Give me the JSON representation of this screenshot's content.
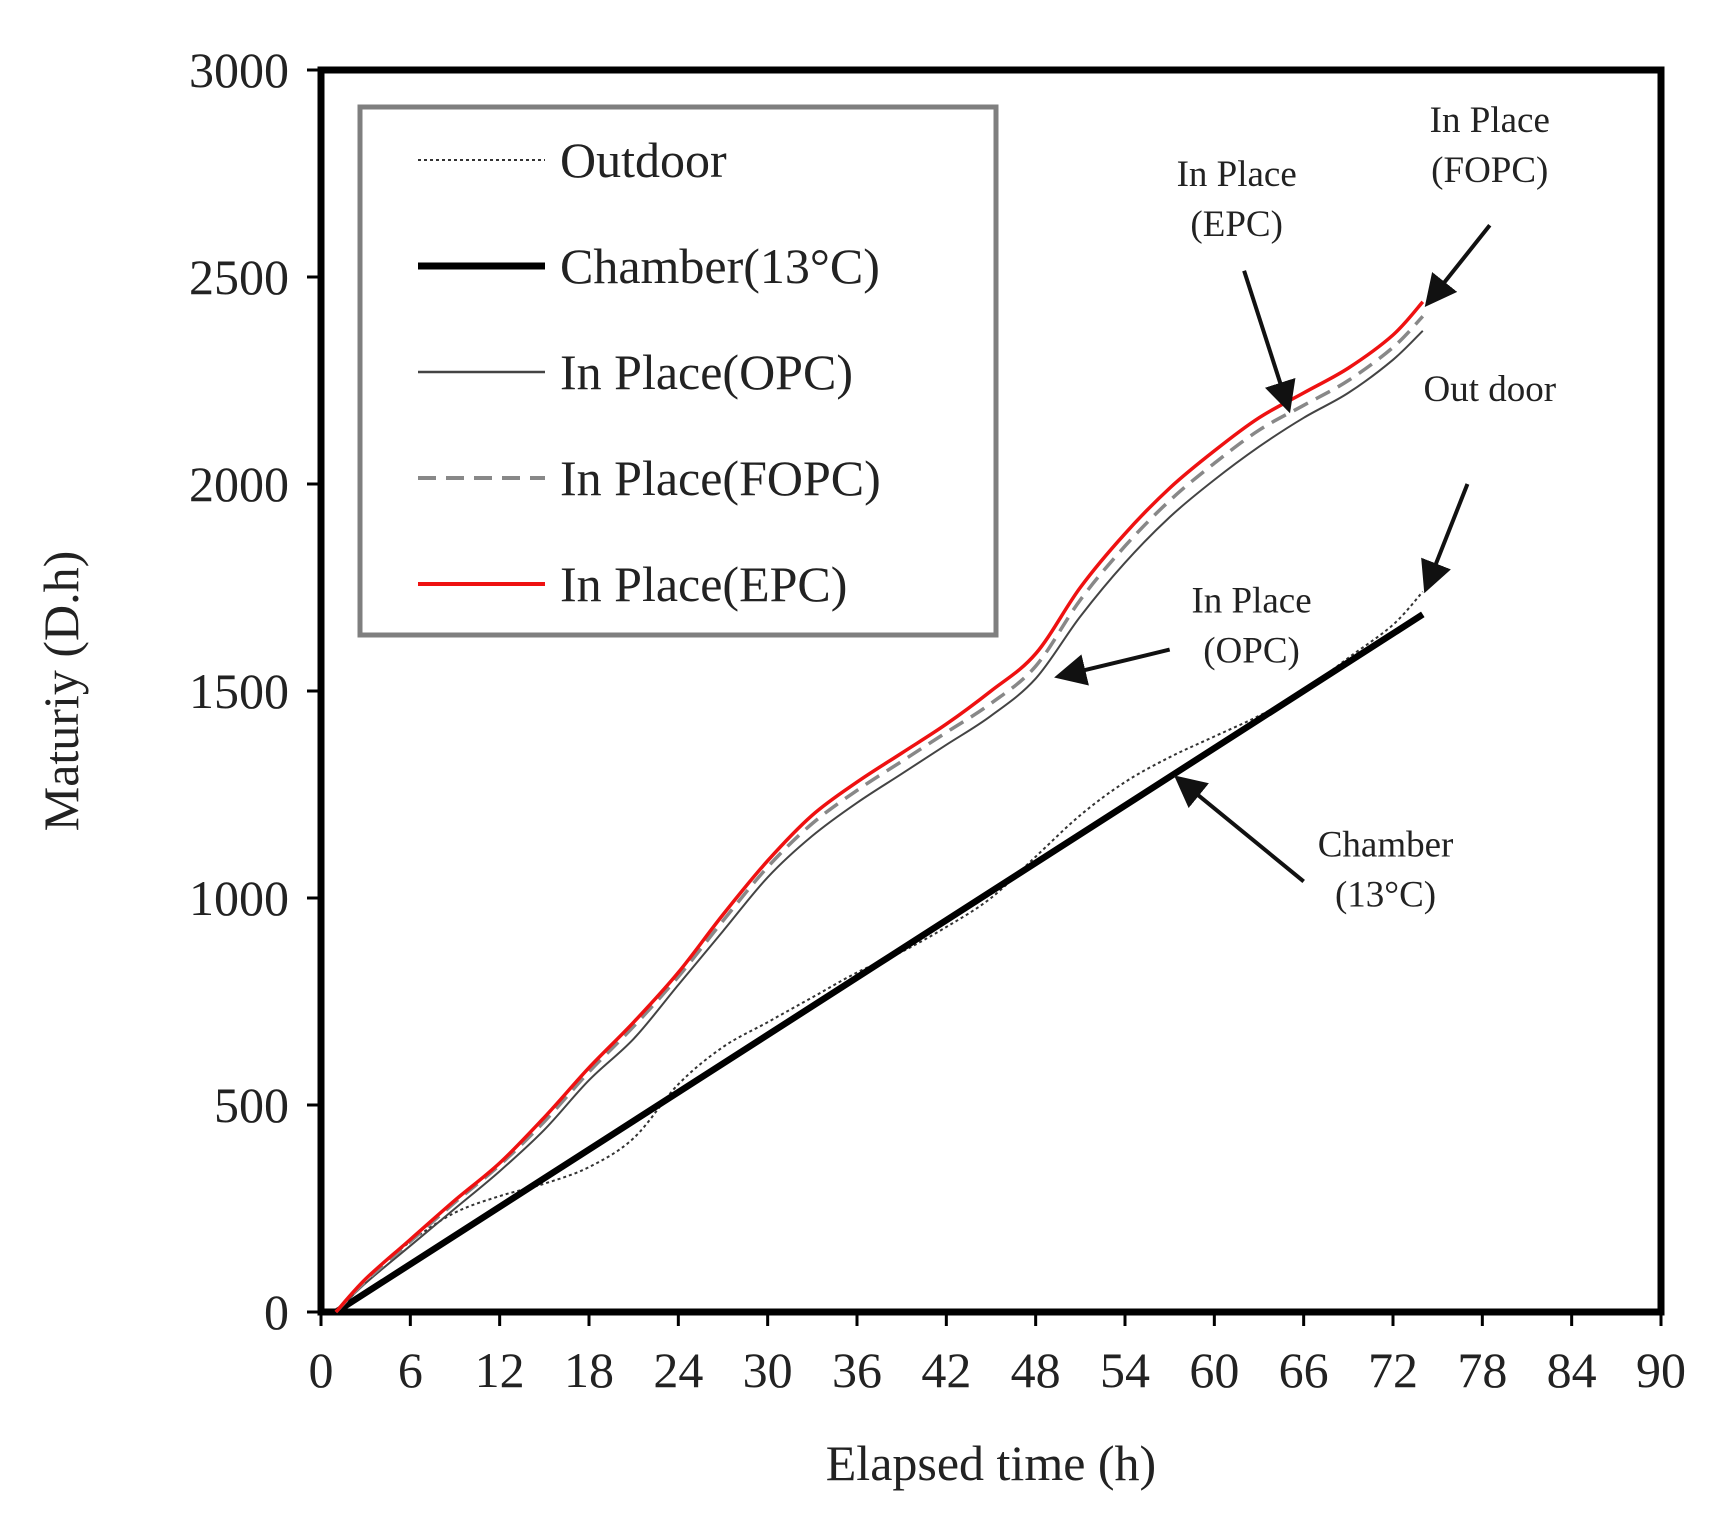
{
  "chart_data": {
    "type": "line",
    "title": "",
    "xlabel": "Elapsed time (h)",
    "ylabel": "Maturiy (D.h)",
    "xlim": [
      0,
      90
    ],
    "ylim": [
      0,
      3000
    ],
    "xticks": [
      0,
      6,
      12,
      18,
      24,
      30,
      36,
      42,
      48,
      54,
      60,
      66,
      72,
      78,
      84,
      90
    ],
    "yticks": [
      0,
      500,
      1000,
      1500,
      2000,
      2500,
      3000
    ],
    "grid": false,
    "legend_position": "top-left",
    "series": [
      {
        "name": "Outdoor",
        "color": "#333333",
        "style": "dotted",
        "points": [
          [
            1,
            0
          ],
          [
            3,
            80
          ],
          [
            6,
            170
          ],
          [
            9,
            240
          ],
          [
            12,
            280
          ],
          [
            15,
            310
          ],
          [
            18,
            350
          ],
          [
            21,
            420
          ],
          [
            24,
            550
          ],
          [
            27,
            640
          ],
          [
            30,
            700
          ],
          [
            33,
            760
          ],
          [
            36,
            820
          ],
          [
            39,
            870
          ],
          [
            42,
            930
          ],
          [
            45,
            1000
          ],
          [
            48,
            1100
          ],
          [
            51,
            1200
          ],
          [
            54,
            1280
          ],
          [
            57,
            1340
          ],
          [
            60,
            1390
          ],
          [
            63,
            1440
          ],
          [
            66,
            1500
          ],
          [
            69,
            1580
          ],
          [
            72,
            1660
          ],
          [
            74,
            1740
          ]
        ]
      },
      {
        "name": "Chamber(13°C)",
        "color": "#000000",
        "style": "thick",
        "points": [
          [
            1,
            0
          ],
          [
            74,
            1685
          ]
        ]
      },
      {
        "name": "In Place(OPC)",
        "color": "#444444",
        "style": "solid-thin",
        "points": [
          [
            1,
            0
          ],
          [
            3,
            70
          ],
          [
            6,
            160
          ],
          [
            9,
            250
          ],
          [
            12,
            340
          ],
          [
            15,
            440
          ],
          [
            18,
            560
          ],
          [
            21,
            660
          ],
          [
            24,
            790
          ],
          [
            27,
            920
          ],
          [
            30,
            1050
          ],
          [
            33,
            1150
          ],
          [
            36,
            1230
          ],
          [
            39,
            1300
          ],
          [
            42,
            1370
          ],
          [
            45,
            1440
          ],
          [
            48,
            1530
          ],
          [
            51,
            1680
          ],
          [
            54,
            1810
          ],
          [
            57,
            1920
          ],
          [
            60,
            2010
          ],
          [
            63,
            2090
          ],
          [
            66,
            2160
          ],
          [
            69,
            2220
          ],
          [
            72,
            2300
          ],
          [
            74,
            2370
          ]
        ]
      },
      {
        "name": "In Place(FOPC)",
        "color": "#888888",
        "style": "dashed",
        "points": [
          [
            1,
            0
          ],
          [
            3,
            75
          ],
          [
            6,
            170
          ],
          [
            9,
            265
          ],
          [
            12,
            355
          ],
          [
            15,
            460
          ],
          [
            18,
            580
          ],
          [
            21,
            690
          ],
          [
            24,
            810
          ],
          [
            27,
            945
          ],
          [
            30,
            1075
          ],
          [
            33,
            1180
          ],
          [
            36,
            1260
          ],
          [
            39,
            1330
          ],
          [
            42,
            1400
          ],
          [
            45,
            1470
          ],
          [
            48,
            1560
          ],
          [
            51,
            1720
          ],
          [
            54,
            1850
          ],
          [
            57,
            1960
          ],
          [
            60,
            2050
          ],
          [
            63,
            2130
          ],
          [
            66,
            2190
          ],
          [
            69,
            2250
          ],
          [
            72,
            2330
          ],
          [
            74,
            2405
          ]
        ]
      },
      {
        "name": "In Place(EPC)",
        "color": "#ee1111",
        "style": "solid",
        "points": [
          [
            1,
            0
          ],
          [
            3,
            80
          ],
          [
            6,
            175
          ],
          [
            9,
            270
          ],
          [
            12,
            360
          ],
          [
            15,
            470
          ],
          [
            18,
            590
          ],
          [
            21,
            700
          ],
          [
            24,
            820
          ],
          [
            27,
            960
          ],
          [
            30,
            1090
          ],
          [
            33,
            1200
          ],
          [
            36,
            1280
          ],
          [
            39,
            1350
          ],
          [
            42,
            1420
          ],
          [
            45,
            1500
          ],
          [
            48,
            1590
          ],
          [
            51,
            1750
          ],
          [
            54,
            1880
          ],
          [
            57,
            1990
          ],
          [
            60,
            2080
          ],
          [
            63,
            2160
          ],
          [
            66,
            2220
          ],
          [
            69,
            2280
          ],
          [
            72,
            2360
          ],
          [
            74,
            2440
          ]
        ]
      }
    ],
    "annotations": [
      {
        "lines": [
          "In Place",
          "(EPC)"
        ],
        "text_at": [
          61.5,
          2720
        ],
        "arrow_from": [
          62,
          2515
        ],
        "arrow_to": [
          65,
          2180
        ]
      },
      {
        "lines": [
          "In Place",
          "(FOPC)"
        ],
        "text_at": [
          78.5,
          2850
        ],
        "arrow_from": [
          78.5,
          2625
        ],
        "arrow_to": [
          74.3,
          2435
        ]
      },
      {
        "lines": [
          "Out door"
        ],
        "text_at": [
          78.5,
          2200
        ],
        "arrow_from": [
          77,
          2000
        ],
        "arrow_to": [
          74.2,
          1745
        ]
      },
      {
        "lines": [
          "In Place",
          "(OPC)"
        ],
        "text_at": [
          62.5,
          1690
        ],
        "arrow_from": [
          57,
          1600
        ],
        "arrow_to": [
          49.5,
          1535
        ]
      },
      {
        "lines": [
          "Chamber",
          "(13°C)"
        ],
        "text_at": [
          71.5,
          1100
        ],
        "arrow_from": [
          66,
          1040
        ],
        "arrow_to": [
          57.5,
          1290
        ]
      }
    ]
  }
}
